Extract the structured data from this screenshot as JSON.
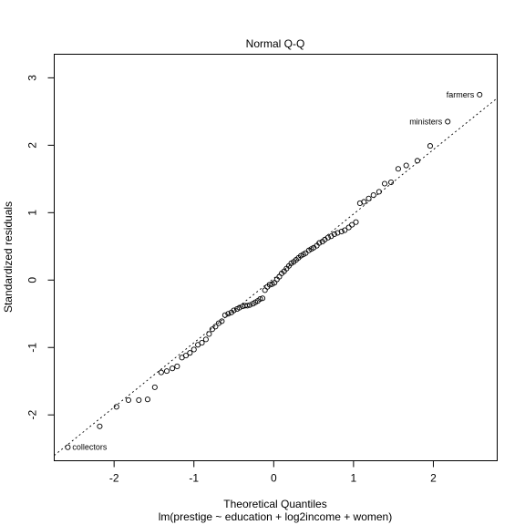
{
  "chart_data": {
    "type": "scatter",
    "title": "Normal Q-Q",
    "xlabel": "Theoretical Quantiles",
    "subtitle": "lm(prestige ~ education + log2income + women)",
    "ylabel": "Standardized residuals",
    "xlim": [
      -2.75,
      2.8
    ],
    "ylim": [
      -2.68,
      3.35
    ],
    "x_ticks": [
      -2,
      -1,
      0,
      1,
      2
    ],
    "y_ticks": [
      -2,
      -1,
      0,
      1,
      2,
      3
    ],
    "grid": false,
    "reference_line": {
      "intercept": 0.025,
      "slope": 0.955,
      "style": "dotted"
    },
    "labeled_points": [
      {
        "label": "farmers",
        "x": 2.58,
        "y": 2.75
      },
      {
        "label": "ministers",
        "x": 2.18,
        "y": 2.35
      },
      {
        "label": "collectors",
        "x": -2.58,
        "y": -2.48
      }
    ],
    "points": [
      [
        -2.58,
        -2.48
      ],
      [
        -2.18,
        -2.17
      ],
      [
        -1.97,
        -1.88
      ],
      [
        -1.82,
        -1.78
      ],
      [
        -1.69,
        -1.78
      ],
      [
        -1.58,
        -1.77
      ],
      [
        -1.49,
        -1.59
      ],
      [
        -1.41,
        -1.37
      ],
      [
        -1.34,
        -1.35
      ],
      [
        -1.27,
        -1.31
      ],
      [
        -1.21,
        -1.28
      ],
      [
        -1.15,
        -1.15
      ],
      [
        -1.1,
        -1.12
      ],
      [
        -1.05,
        -1.08
      ],
      [
        -1.0,
        -1.03
      ],
      [
        -0.95,
        -0.96
      ],
      [
        -0.9,
        -0.93
      ],
      [
        -0.85,
        -0.88
      ],
      [
        -0.81,
        -0.8
      ],
      [
        -0.77,
        -0.73
      ],
      [
        -0.73,
        -0.69
      ],
      [
        -0.69,
        -0.64
      ],
      [
        -0.65,
        -0.61
      ],
      [
        -0.61,
        -0.52
      ],
      [
        -0.57,
        -0.5
      ],
      [
        -0.53,
        -0.48
      ],
      [
        -0.5,
        -0.45
      ],
      [
        -0.46,
        -0.43
      ],
      [
        -0.43,
        -0.41
      ],
      [
        -0.39,
        -0.39
      ],
      [
        -0.36,
        -0.38
      ],
      [
        -0.33,
        -0.38
      ],
      [
        -0.3,
        -0.37
      ],
      [
        -0.26,
        -0.35
      ],
      [
        -0.23,
        -0.33
      ],
      [
        -0.2,
        -0.31
      ],
      [
        -0.17,
        -0.28
      ],
      [
        -0.14,
        -0.27
      ],
      [
        -0.11,
        -0.15
      ],
      [
        -0.08,
        -0.1
      ],
      [
        -0.05,
        -0.07
      ],
      [
        -0.02,
        -0.06
      ],
      [
        0.01,
        -0.04
      ],
      [
        0.04,
        0.01
      ],
      [
        0.07,
        0.05
      ],
      [
        0.1,
        0.1
      ],
      [
        0.13,
        0.13
      ],
      [
        0.16,
        0.17
      ],
      [
        0.19,
        0.21
      ],
      [
        0.22,
        0.25
      ],
      [
        0.25,
        0.27
      ],
      [
        0.28,
        0.3
      ],
      [
        0.31,
        0.33
      ],
      [
        0.34,
        0.36
      ],
      [
        0.37,
        0.38
      ],
      [
        0.4,
        0.4
      ],
      [
        0.44,
        0.44
      ],
      [
        0.47,
        0.46
      ],
      [
        0.5,
        0.48
      ],
      [
        0.54,
        0.51
      ],
      [
        0.57,
        0.55
      ],
      [
        0.61,
        0.57
      ],
      [
        0.64,
        0.6
      ],
      [
        0.68,
        0.63
      ],
      [
        0.72,
        0.65
      ],
      [
        0.76,
        0.68
      ],
      [
        0.8,
        0.7
      ],
      [
        0.85,
        0.72
      ],
      [
        0.89,
        0.74
      ],
      [
        0.94,
        0.78
      ],
      [
        0.98,
        0.82
      ],
      [
        1.03,
        0.86
      ],
      [
        1.08,
        1.14
      ],
      [
        1.13,
        1.16
      ],
      [
        1.19,
        1.21
      ],
      [
        1.25,
        1.26
      ],
      [
        1.32,
        1.31
      ],
      [
        1.39,
        1.43
      ],
      [
        1.47,
        1.45
      ],
      [
        1.56,
        1.65
      ],
      [
        1.66,
        1.7
      ],
      [
        1.8,
        1.77
      ],
      [
        1.96,
        1.99
      ],
      [
        2.18,
        2.35
      ],
      [
        2.58,
        2.75
      ]
    ]
  }
}
